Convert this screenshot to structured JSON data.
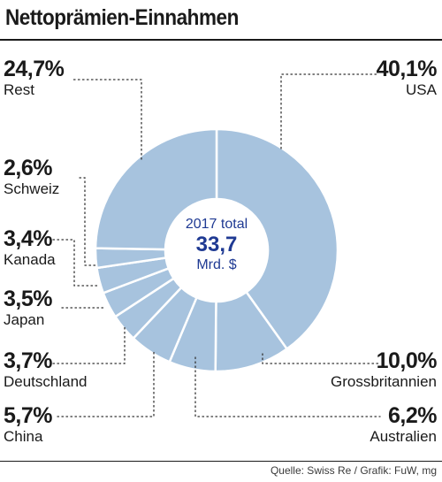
{
  "title": "Nettoprämien-Einnahmen",
  "source": "Quelle: Swiss Re / Grafik: FuW, mg",
  "center": {
    "line1": "2017 total",
    "value": "33,7",
    "unit": "Mrd. $"
  },
  "colors": {
    "slice": "#a7c3de",
    "separator": "#ffffff",
    "center_text": "#1f3a93",
    "leader": "#333333"
  },
  "chart_data": {
    "type": "pie",
    "donut": true,
    "title": "Nettoprämien-Einnahmen",
    "total_label": "2017 total",
    "total": 33.7,
    "total_unit": "Mrd. $",
    "categories": [
      "USA",
      "Grossbritannien",
      "Australien",
      "China",
      "Deutschland",
      "Japan",
      "Kanada",
      "Schweiz",
      "Rest"
    ],
    "values": [
      40.1,
      10.0,
      6.2,
      5.7,
      3.7,
      3.5,
      3.4,
      2.6,
      24.7
    ],
    "value_labels": [
      "40,1%",
      "10,0%",
      "6,2%",
      "5,7%",
      "3,7%",
      "3,5%",
      "3,4%",
      "2,6%",
      "24,7%"
    ],
    "unit": "%"
  },
  "labels": {
    "usa": {
      "pct": "40,1%",
      "name": "USA"
    },
    "gb": {
      "pct": "10,0%",
      "name": "Grossbritannien"
    },
    "australien": {
      "pct": "6,2%",
      "name": "Australien"
    },
    "china": {
      "pct": "5,7%",
      "name": "China"
    },
    "deutschland": {
      "pct": "3,7%",
      "name": "Deutschland"
    },
    "japan": {
      "pct": "3,5%",
      "name": "Japan"
    },
    "kanada": {
      "pct": "3,4%",
      "name": "Kanada"
    },
    "schweiz": {
      "pct": "2,6%",
      "name": "Schweiz"
    },
    "rest": {
      "pct": "24,7%",
      "name": "Rest"
    }
  }
}
